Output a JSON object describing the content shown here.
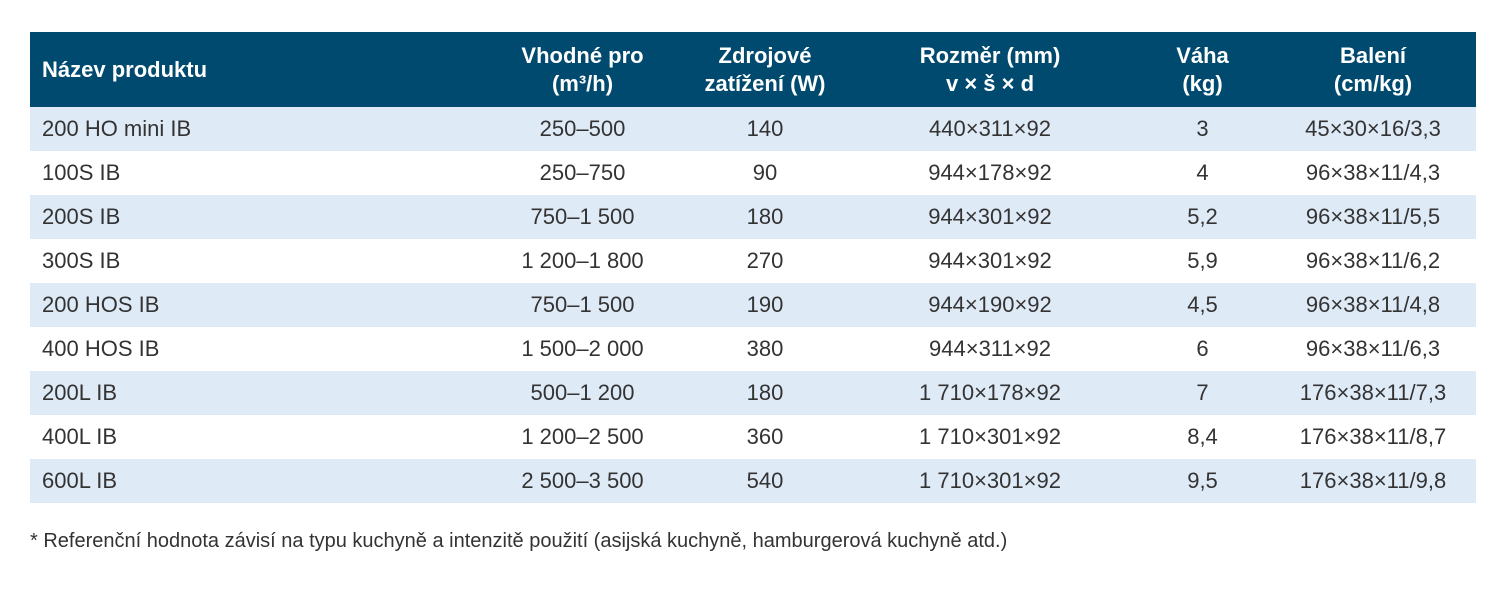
{
  "table": {
    "headers": [
      [
        "Název produktu"
      ],
      [
        "Vhodné pro",
        "(m³/h)"
      ],
      [
        "Zdrojové",
        "zatížení (W)"
      ],
      [
        "Rozměr (mm)",
        "v × š × d"
      ],
      [
        "Váha",
        "(kg)"
      ],
      [
        "Balení",
        "(cm/kg)"
      ]
    ],
    "rows": [
      [
        "200 HO mini IB",
        "250–500",
        "140",
        "440×311×92",
        "3",
        "45×30×16/3,3"
      ],
      [
        "100S IB",
        "250–750",
        "90",
        "944×178×92",
        "4",
        "96×38×11/4,3"
      ],
      [
        "200S IB",
        "750–1 500",
        "180",
        "944×301×92",
        "5,2",
        "96×38×11/5,5"
      ],
      [
        "300S IB",
        "1 200–1 800",
        "270",
        "944×301×92",
        "5,9",
        "96×38×11/6,2"
      ],
      [
        "200 HOS IB",
        "750–1 500",
        "190",
        "944×190×92",
        "4,5",
        "96×38×11/4,8"
      ],
      [
        "400 HOS IB",
        "1 500–2 000",
        "380",
        "944×311×92",
        "6",
        "96×38×11/6,3"
      ],
      [
        "200L IB",
        "500–1 200",
        "180",
        "1 710×178×92",
        "7",
        "176×38×11/7,3"
      ],
      [
        "400L IB",
        "1 200–2 500",
        "360",
        "1 710×301×92",
        "8,4",
        "176×38×11/8,7"
      ],
      [
        "600L IB",
        "2 500–3 500",
        "540",
        "1 710×301×92",
        "9,5",
        "176×38×11/9,8"
      ]
    ]
  },
  "footnote": "* Referenční hodnota závisí na typu kuchyně a intenzitě použití (asijská kuchyně, hamburgerová kuchyně atd.)",
  "colors": {
    "header_bg": "#004a6f",
    "row_alt_bg": "#dfeaf7",
    "header_text": "#ffffff"
  }
}
